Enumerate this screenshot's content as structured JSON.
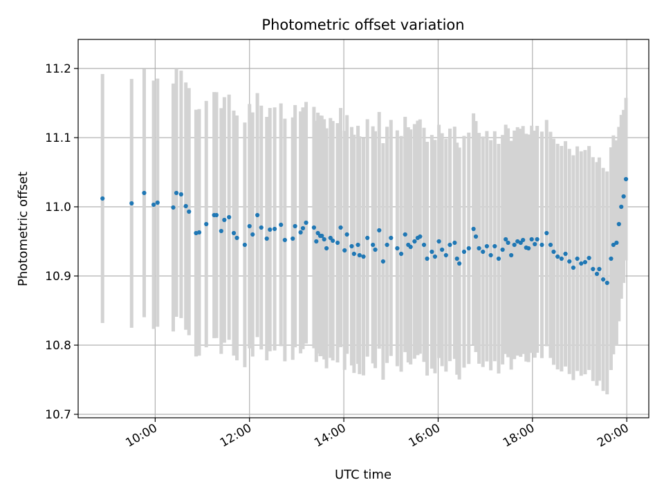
{
  "chart_data": {
    "type": "scatter",
    "title": "Photometric offset variation",
    "xlabel": "UTC time",
    "ylabel": "Photometric offset",
    "x_unit": "hours (UTC)",
    "xlim": [
      "08:22",
      "20:28"
    ],
    "ylim": [
      10.695,
      11.242
    ],
    "x_ticks": [
      "10:00",
      "12:00",
      "14:00",
      "16:00",
      "18:00",
      "20:00"
    ],
    "y_ticks": [
      "10.7",
      "10.8",
      "10.9",
      "11.0",
      "11.1",
      "11.2"
    ],
    "grid": true,
    "marker_color": "#1f77b4",
    "errorbar_color": "#d3d3d3",
    "series": [
      {
        "x": [
          "08:53",
          "09:30",
          "09:46",
          "09:58",
          "10:03",
          "10:23",
          "10:27",
          "10:33",
          "10:39",
          "10:43",
          "10:52",
          "10:56",
          "11:05",
          "11:15",
          "11:18",
          "11:24",
          "11:28",
          "11:34",
          "11:40",
          "11:44",
          "11:54",
          "12:00",
          "12:04",
          "12:10",
          "12:15",
          "12:22",
          "12:26",
          "12:32",
          "12:40",
          "12:45",
          "12:55",
          "12:58",
          "13:05",
          "13:08",
          "13:12",
          "13:22",
          "13:25",
          "13:27",
          "13:30",
          "13:32",
          "13:35",
          "13:38",
          "13:43",
          "13:46",
          "13:52",
          "13:56",
          "14:01",
          "14:04",
          "14:10",
          "14:13",
          "14:18",
          "14:20",
          "14:25",
          "14:30",
          "14:37",
          "14:40",
          "14:45",
          "14:50",
          "14:55",
          "15:00",
          "15:08",
          "15:13",
          "15:18",
          "15:22",
          "15:25",
          "15:30",
          "15:34",
          "15:37",
          "15:42",
          "15:46",
          "15:52",
          "15:56",
          "16:01",
          "16:05",
          "16:10",
          "16:15",
          "16:21",
          "16:24",
          "16:27",
          "16:33",
          "16:39",
          "16:45",
          "16:48",
          "16:52",
          "16:57",
          "17:02",
          "17:07",
          "17:12",
          "17:17",
          "17:22",
          "17:26",
          "17:29",
          "17:33",
          "17:37",
          "17:41",
          "17:45",
          "17:48",
          "17:52",
          "17:55",
          "17:59",
          "18:03",
          "18:06",
          "18:12",
          "18:18",
          "18:23",
          "18:27",
          "18:32",
          "18:37",
          "18:42",
          "18:47",
          "18:52",
          "18:57",
          "19:02",
          "19:07",
          "19:12",
          "19:17",
          "19:22",
          "19:25",
          "19:30",
          "19:35",
          "19:40",
          "19:43",
          "19:47",
          "19:50",
          "19:53",
          "19:56",
          "19:59"
        ],
        "y": [
          11.012,
          11.005,
          11.02,
          11.003,
          11.006,
          10.999,
          11.02,
          11.018,
          11.001,
          10.993,
          10.962,
          10.963,
          10.975,
          10.988,
          10.988,
          10.965,
          10.981,
          10.985,
          10.962,
          10.955,
          10.945,
          10.972,
          10.96,
          10.988,
          10.97,
          10.954,
          10.967,
          10.968,
          10.974,
          10.952,
          10.954,
          10.972,
          10.963,
          10.969,
          10.977,
          10.97,
          10.95,
          10.962,
          10.958,
          10.958,
          10.953,
          10.94,
          10.955,
          10.951,
          10.948,
          10.97,
          10.937,
          10.96,
          10.943,
          10.932,
          10.945,
          10.93,
          10.928,
          10.955,
          10.945,
          10.938,
          10.966,
          10.921,
          10.945,
          10.955,
          10.94,
          10.932,
          10.96,
          10.945,
          10.942,
          10.95,
          10.955,
          10.957,
          10.945,
          10.925,
          10.935,
          10.928,
          10.95,
          10.938,
          10.93,
          10.945,
          10.948,
          10.925,
          10.918,
          10.935,
          10.94,
          10.968,
          10.957,
          10.94,
          10.935,
          10.943,
          10.93,
          10.943,
          10.925,
          10.938,
          10.953,
          10.948,
          10.93,
          10.945,
          10.95,
          10.948,
          10.952,
          10.941,
          10.94,
          10.953,
          10.946,
          10.953,
          10.945,
          10.962,
          10.945,
          10.935,
          10.928,
          10.925,
          10.932,
          10.921,
          10.912,
          10.925,
          10.918,
          10.92,
          10.926,
          10.91,
          10.903,
          10.91,
          10.895,
          10.89,
          10.925,
          10.945,
          10.948,
          10.975,
          11.0,
          11.015,
          11.04
        ]
      }
    ]
  }
}
